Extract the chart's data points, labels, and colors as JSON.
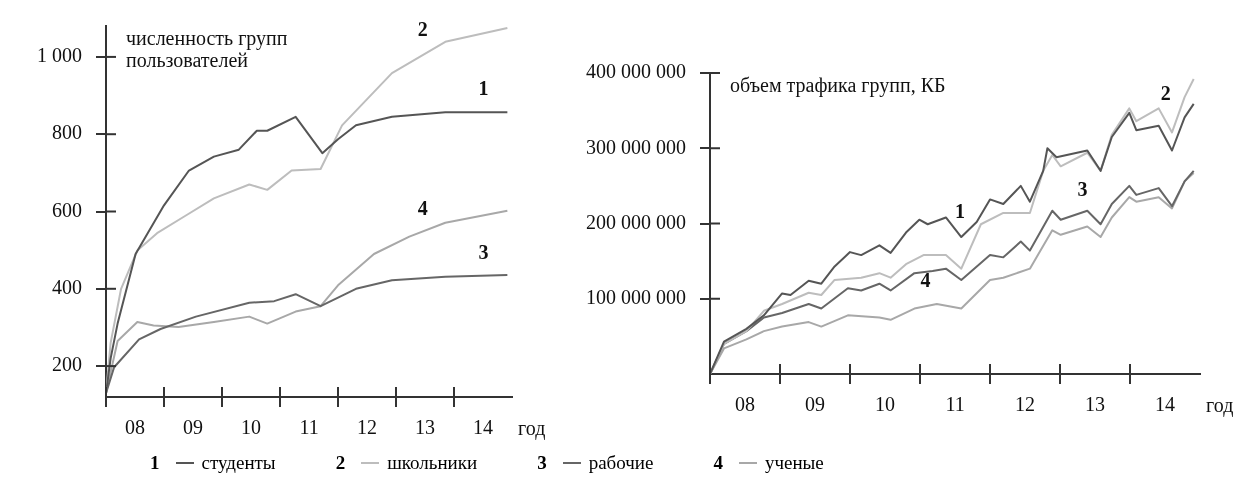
{
  "chart_data": [
    {
      "type": "line",
      "title": "численность групп пользователей",
      "xlabel": "год",
      "xlim": [
        7.5,
        14.5
      ],
      "ylim": [
        120,
        1080
      ],
      "xticks": [
        {
          "value": 7.5,
          "label": null
        },
        {
          "value": 8,
          "label": "08"
        },
        {
          "value": 8.5,
          "label": null
        },
        {
          "value": 9,
          "label": "09"
        },
        {
          "value": 9.5,
          "label": null
        },
        {
          "value": 10,
          "label": "10"
        },
        {
          "value": 10.5,
          "label": null
        },
        {
          "value": 11,
          "label": "11"
        },
        {
          "value": 11.5,
          "label": null
        },
        {
          "value": 12,
          "label": "12"
        },
        {
          "value": 12.5,
          "label": null
        },
        {
          "value": 13,
          "label": "13"
        },
        {
          "value": 13.5,
          "label": null
        },
        {
          "value": 14,
          "label": "14"
        }
      ],
      "yticks": [
        200,
        400,
        600,
        800,
        {
          "value": 1000,
          "label": "1 000"
        }
      ],
      "grid": false,
      "legend": "bottom",
      "marker": "none",
      "line_style": "solid",
      "series": [
        {
          "name": "студенты",
          "color": "#555555",
          "x": [
            7.5,
            7.58,
            7.7,
            8.01,
            8.5,
            8.93,
            9.36,
            9.79,
            10.1,
            10.28,
            10.77,
            11.23,
            11.5,
            11.81,
            12.43,
            13.35,
            14.42
          ],
          "values": [
            130,
            220,
            310,
            490,
            616,
            706,
            742,
            760,
            809,
            809,
            845,
            751,
            787,
            823,
            845,
            857,
            857
          ]
        },
        {
          "name": "школьники",
          "color": "#bdbdbd",
          "x": [
            7.5,
            7.58,
            7.76,
            8.04,
            8.38,
            8.87,
            9.36,
            9.97,
            10.28,
            10.7,
            11.2,
            11.57,
            12.43,
            13.35,
            14.42
          ],
          "values": [
            130,
            260,
            400,
            499,
            544,
            589,
            634,
            670,
            656,
            706,
            710,
            823,
            958,
            1039,
            1075
          ]
        },
        {
          "name": "рабочие",
          "color": "#666666",
          "x": [
            7.5,
            7.64,
            8.07,
            8.44,
            9.05,
            9.97,
            10.4,
            10.77,
            11.2,
            11.81,
            12.43,
            13.35,
            14.42
          ],
          "values": [
            130,
            197,
            269,
            296,
            328,
            364,
            368,
            386,
            355,
            400,
            422,
            431,
            436
          ]
        },
        {
          "name": "ученые",
          "color": "#a8a8a8",
          "x": [
            7.5,
            7.7,
            8.04,
            8.32,
            8.75,
            9.36,
            9.97,
            10.28,
            10.77,
            11.2,
            11.5,
            12.12,
            12.73,
            13.35,
            14.42
          ],
          "values": [
            130,
            265,
            314,
            305,
            301,
            314,
            328,
            310,
            341,
            355,
            409,
            490,
            535,
            571,
            602
          ]
        }
      ],
      "annotations": [
        "1",
        "2",
        "3",
        "4"
      ]
    },
    {
      "type": "line",
      "title": "объем трафика групп, КБ",
      "xlabel": "год",
      "xlim": [
        7.5,
        14.5
      ],
      "ylim": [
        0,
        400000000
      ],
      "xticks": [
        {
          "value": 7.5,
          "label": null
        },
        {
          "value": 8,
          "label": "08"
        },
        {
          "value": 8.5,
          "label": null
        },
        {
          "value": 9,
          "label": "09"
        },
        {
          "value": 9.5,
          "label": null
        },
        {
          "value": 10,
          "label": "10"
        },
        {
          "value": 10.5,
          "label": null
        },
        {
          "value": 11,
          "label": "11"
        },
        {
          "value": 11.5,
          "label": null
        },
        {
          "value": 12,
          "label": "12"
        },
        {
          "value": 12.5,
          "label": null
        },
        {
          "value": 13,
          "label": "13"
        },
        {
          "value": 13.5,
          "label": null
        },
        {
          "value": 14,
          "label": "14"
        }
      ],
      "yticks": [
        {
          "value": 100000000,
          "label": "100 000 000"
        },
        {
          "value": 200000000,
          "label": "200 000 000"
        },
        {
          "value": 300000000,
          "label": "300 000 000"
        },
        {
          "value": 400000000,
          "label": "400 000 000"
        }
      ],
      "grid": false,
      "marker": "none",
      "line_style": "solid",
      "series": [
        {
          "color": "#555555",
          "x": [
            7.5,
            7.7,
            8.02,
            8.27,
            8.53,
            8.65,
            8.91,
            9.09,
            9.28,
            9.5,
            9.66,
            9.92,
            10.08,
            10.3,
            10.49,
            10.61,
            10.87,
            11.09,
            11.31,
            11.5,
            11.69,
            11.94,
            12.07,
            12.26,
            12.32,
            12.45,
            12.89,
            13.08,
            13.24,
            13.49,
            13.59,
            13.91,
            14.1,
            14.28,
            14.41
          ],
          "values": [
            0,
            43000000,
            60000000,
            78000000,
            107000000,
            105000000,
            124000000,
            120000000,
            143000000,
            162000000,
            158000000,
            171000000,
            161000000,
            188000000,
            205000000,
            199000000,
            208000000,
            182000000,
            202000000,
            232000000,
            226000000,
            250000000,
            229000000,
            270000000,
            300000000,
            288000000,
            297000000,
            270000000,
            315000000,
            347000000,
            324000000,
            330000000,
            297000000,
            341000000,
            359000000
          ]
        },
        {
          "color": "#bdbdbd",
          "x": [
            7.5,
            7.7,
            8.02,
            8.27,
            8.53,
            8.91,
            9.09,
            9.28,
            9.66,
            9.92,
            10.08,
            10.3,
            10.55,
            10.87,
            11.09,
            11.37,
            11.69,
            12.07,
            12.26,
            12.39,
            12.51,
            12.89,
            13.08,
            13.24,
            13.49,
            13.59,
            13.91,
            14.1,
            14.28,
            14.41
          ],
          "values": [
            0,
            40000000,
            57000000,
            84000000,
            93000000,
            108000000,
            105000000,
            125000000,
            128000000,
            134000000,
            128000000,
            146000000,
            158000000,
            158000000,
            140000000,
            199000000,
            214000000,
            214000000,
            270000000,
            291000000,
            276000000,
            294000000,
            270000000,
            318000000,
            353000000,
            336000000,
            353000000,
            321000000,
            368000000,
            392000000
          ]
        },
        {
          "color": "#666666",
          "x": [
            7.5,
            7.7,
            8.02,
            8.27,
            8.53,
            8.91,
            9.09,
            9.47,
            9.66,
            9.92,
            10.08,
            10.42,
            10.68,
            10.87,
            11.09,
            11.5,
            11.69,
            11.94,
            12.07,
            12.39,
            12.51,
            12.89,
            13.08,
            13.24,
            13.49,
            13.59,
            13.91,
            14.1,
            14.28,
            14.41
          ],
          "values": [
            0,
            40000000,
            57000000,
            75000000,
            81000000,
            93000000,
            87000000,
            114000000,
            111000000,
            120000000,
            111000000,
            134000000,
            137000000,
            140000000,
            125000000,
            158000000,
            155000000,
            176000000,
            164000000,
            217000000,
            205000000,
            217000000,
            199000000,
            226000000,
            250000000,
            238000000,
            247000000,
            223000000,
            256000000,
            270000000
          ]
        },
        {
          "color": "#a8a8a8",
          "x": [
            7.5,
            7.7,
            8.02,
            8.27,
            8.53,
            8.91,
            9.09,
            9.47,
            9.92,
            10.08,
            10.42,
            10.74,
            11.09,
            11.5,
            11.69,
            12.07,
            12.39,
            12.51,
            12.89,
            13.08,
            13.24,
            13.49,
            13.59,
            13.91,
            14.1,
            14.28,
            14.41
          ],
          "values": [
            0,
            34000000,
            46000000,
            57000000,
            63000000,
            69000000,
            63000000,
            78000000,
            75000000,
            72000000,
            87000000,
            93000000,
            87000000,
            125000000,
            128000000,
            140000000,
            191000000,
            185000000,
            196000000,
            182000000,
            208000000,
            235000000,
            229000000,
            235000000,
            220000000,
            256000000,
            267000000
          ]
        }
      ],
      "annotations": [
        "1",
        "2",
        "3",
        "4"
      ]
    }
  ]
}
